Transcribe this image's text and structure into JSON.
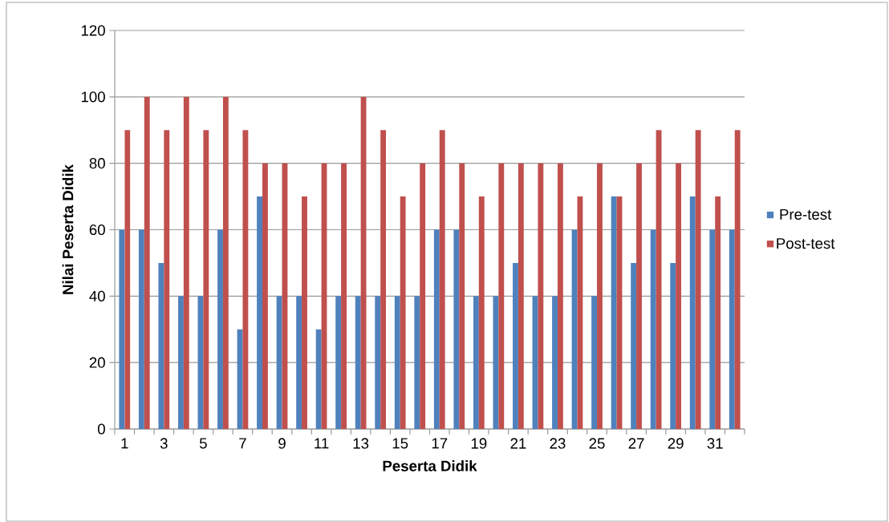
{
  "chart_data": {
    "type": "bar",
    "xlabel": "Peserta Didik",
    "ylabel": "Nilai Peserta Didik",
    "categories": [
      "1",
      null,
      "3",
      null,
      "5",
      null,
      "7",
      null,
      "9",
      null,
      "11",
      null,
      "13",
      null,
      "15",
      null,
      "17",
      null,
      "19",
      null,
      "21",
      null,
      "23",
      null,
      "25",
      null,
      "27",
      null,
      "29",
      null,
      "31",
      null
    ],
    "series": [
      {
        "name": "Pre-test",
        "color": "#4f81bd",
        "values": [
          60,
          60,
          50,
          40,
          40,
          60,
          30,
          70,
          40,
          40,
          30,
          40,
          40,
          40,
          40,
          40,
          60,
          60,
          40,
          40,
          50,
          40,
          40,
          60,
          40,
          70,
          50,
          60,
          50,
          70,
          60,
          60
        ]
      },
      {
        "name": "Post-test",
        "color": "#c0504d",
        "values": [
          90,
          100,
          90,
          100,
          90,
          100,
          90,
          80,
          80,
          70,
          80,
          80,
          100,
          90,
          70,
          80,
          90,
          80,
          70,
          80,
          80,
          80,
          80,
          70,
          80,
          70,
          80,
          90,
          80,
          90,
          70,
          90
        ]
      }
    ],
    "ylim": [
      0,
      120
    ],
    "yticks": [
      0,
      20,
      40,
      60,
      80,
      100,
      120
    ],
    "grid": "y",
    "legend": "right"
  }
}
